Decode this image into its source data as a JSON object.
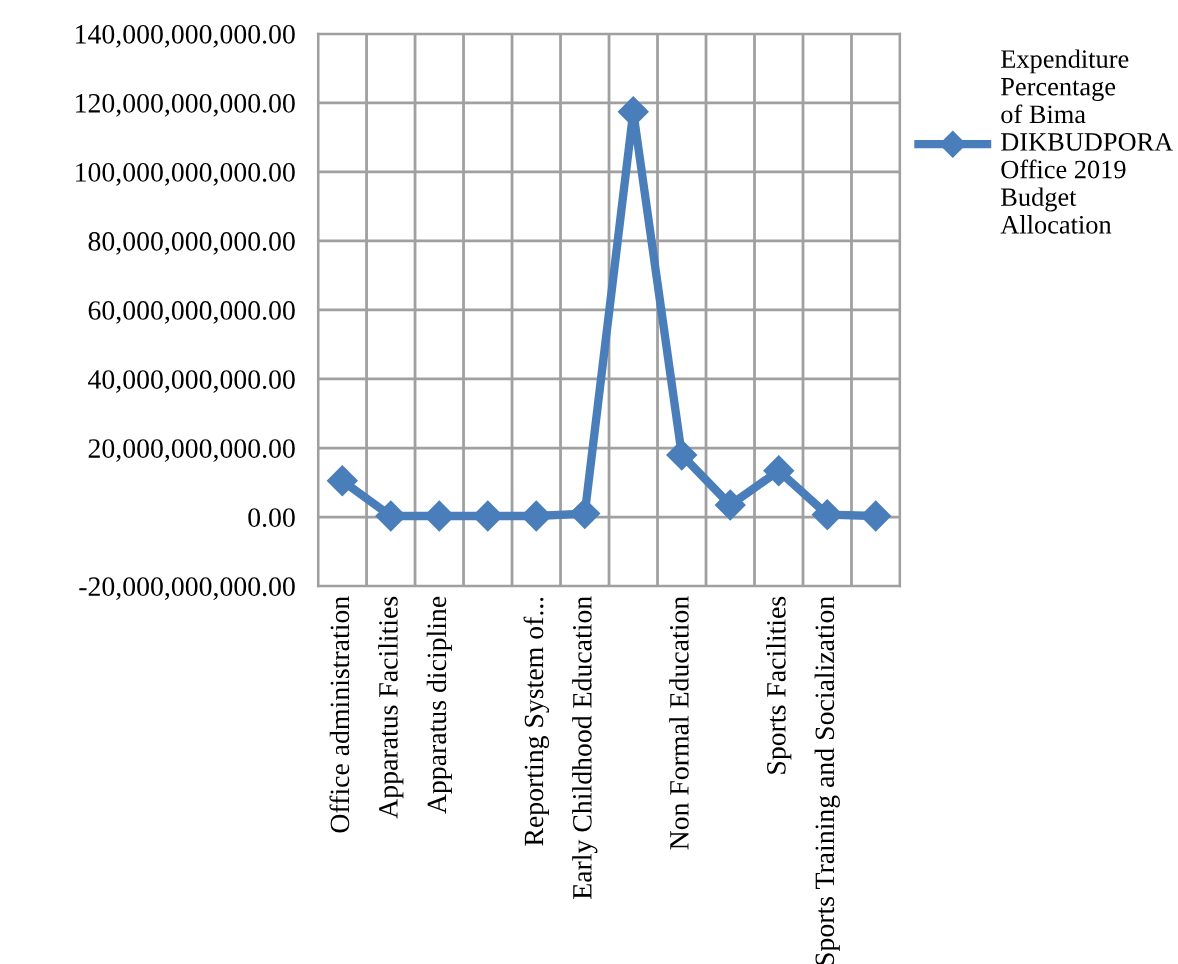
{
  "chart_data": {
    "type": "line",
    "categories": [
      "Office administration",
      "Apparatus Facilities",
      "Apparatus dicipline",
      null,
      "Reporting System of...",
      "Early Childhood Education",
      null,
      "Non Formal Education",
      null,
      "Sports Facilities",
      "Sports Training and Socialization",
      null
    ],
    "series": [
      {
        "name": "Expenditure Percentage of Bima DIKBUDPORA Office 2019  Budget Allocation",
        "color": "#4a7ebb",
        "values": [
          10500000000,
          300000000,
          300000000,
          300000000,
          300000000,
          1000000000,
          117400000000,
          18000000000,
          3500000000,
          13400000000,
          700000000,
          300000000
        ]
      }
    ],
    "ylim": [
      -20000000000,
      140000000000
    ],
    "yticks": [
      {
        "value": -20000000000,
        "label": "-20,000,000,000.00"
      },
      {
        "value": 0,
        "label": "0.00"
      },
      {
        "value": 20000000000,
        "label": "20,000,000,000.00"
      },
      {
        "value": 40000000000,
        "label": "40,000,000,000.00"
      },
      {
        "value": 60000000000,
        "label": "60,000,000,000.00"
      },
      {
        "value": 80000000000,
        "label": "80,000,000,000.00"
      },
      {
        "value": 100000000000,
        "label": "100,000,000,000.00"
      },
      {
        "value": 120000000000,
        "label": "120,000,000,000.00"
      },
      {
        "value": 140000000000,
        "label": "140,000,000,000.00"
      }
    ],
    "grid": true,
    "legend": "right",
    "marker": "diamond",
    "line_style": "solid"
  }
}
